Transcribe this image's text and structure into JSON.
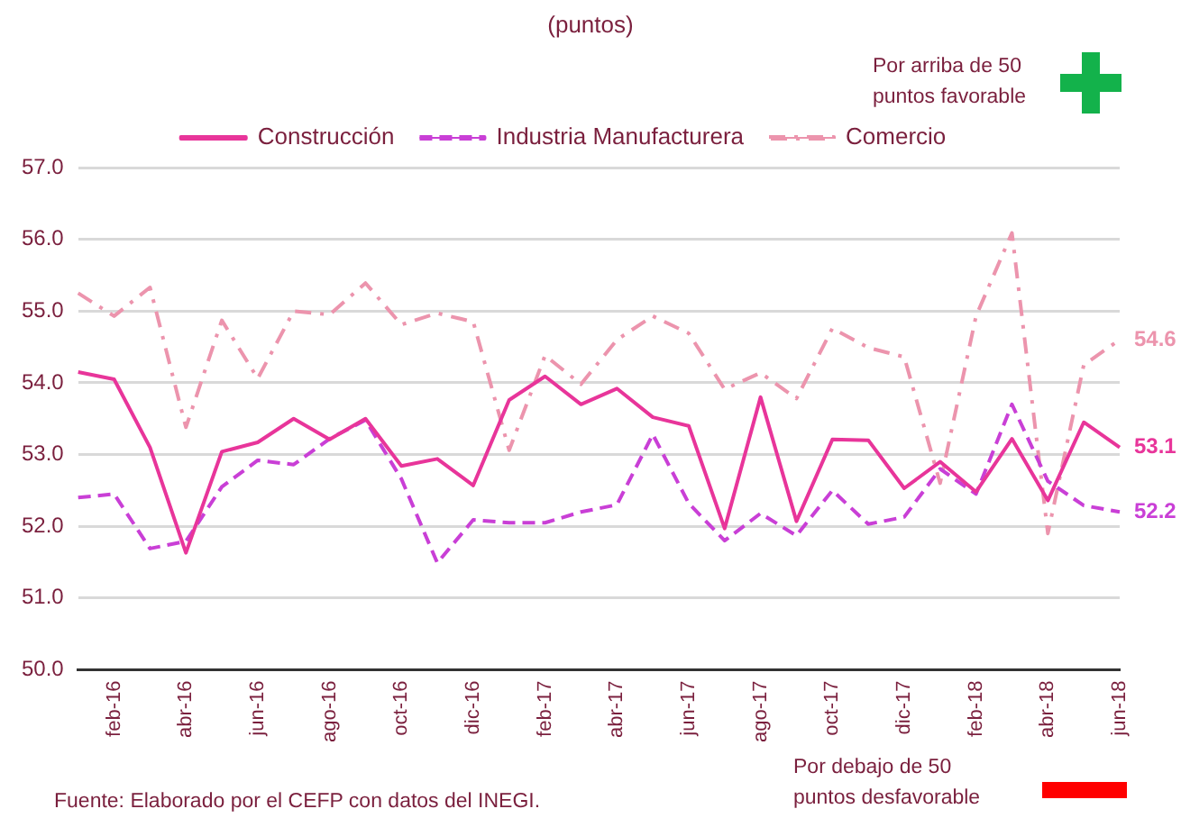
{
  "chart_data": {
    "type": "line",
    "title": "(puntos)",
    "categories": [
      null,
      "feb-16",
      null,
      "abr-16",
      null,
      "jun-16",
      null,
      "ago-16",
      null,
      "oct-16",
      null,
      "dic-16",
      null,
      "feb-17",
      null,
      "abr-17",
      null,
      "jun-17",
      null,
      "ago-17",
      null,
      "oct-17",
      null,
      "dic-17",
      null,
      "feb-18",
      null,
      "abr-18",
      null,
      "jun-18"
    ],
    "series": [
      {
        "name": "Construcción",
        "color": "#e8359a",
        "line_style": "solid",
        "values": [
          54.15,
          54.05,
          53.1,
          51.63,
          53.04,
          53.17,
          53.5,
          53.21,
          53.5,
          52.84,
          52.94,
          52.57,
          53.76,
          54.09,
          53.7,
          53.92,
          53.52,
          53.4,
          51.97,
          53.8,
          52.07,
          53.21,
          53.2,
          52.53,
          52.9,
          52.48,
          53.22,
          52.36,
          53.45,
          53.1
        ],
        "value_labels": [
          null,
          null,
          null,
          null,
          null,
          null,
          null,
          null,
          null,
          null,
          null,
          null,
          null,
          null,
          null,
          null,
          null,
          null,
          null,
          null,
          null,
          null,
          null,
          null,
          null,
          null,
          null,
          null,
          null,
          "53.1"
        ]
      },
      {
        "name": "Industria Manufacturera",
        "color": "#c93fd6",
        "line_style": "dashed",
        "values": [
          52.4,
          52.45,
          51.69,
          51.79,
          52.55,
          52.92,
          52.86,
          53.22,
          53.48,
          52.66,
          51.49,
          52.09,
          52.05,
          52.05,
          52.2,
          52.3,
          53.28,
          52.32,
          51.8,
          52.18,
          51.87,
          52.5,
          52.03,
          52.13,
          52.8,
          52.45,
          53.7,
          52.63,
          52.29,
          52.2
        ],
        "value_labels": [
          null,
          null,
          null,
          null,
          null,
          null,
          null,
          null,
          null,
          null,
          null,
          null,
          null,
          null,
          null,
          null,
          null,
          null,
          null,
          null,
          null,
          null,
          null,
          null,
          null,
          null,
          null,
          null,
          null,
          "52.2"
        ]
      },
      {
        "name": "Comercio",
        "color": "#ec94ad",
        "line_style": "dashdot",
        "values": [
          55.25,
          54.93,
          55.33,
          53.38,
          54.87,
          54.06,
          55.0,
          54.95,
          55.39,
          54.81,
          54.97,
          54.85,
          53.06,
          54.38,
          53.98,
          54.6,
          54.93,
          54.69,
          53.91,
          54.14,
          53.78,
          54.76,
          54.49,
          54.36,
          52.6,
          54.93,
          56.09,
          51.9,
          54.25,
          54.6
        ],
        "value_labels": [
          null,
          null,
          null,
          null,
          null,
          null,
          null,
          null,
          null,
          null,
          null,
          null,
          null,
          null,
          null,
          null,
          null,
          null,
          null,
          null,
          null,
          null,
          null,
          null,
          null,
          null,
          null,
          null,
          null,
          "54.6"
        ]
      }
    ],
    "ylim": [
      50,
      57
    ],
    "yticks": [
      {
        "value": 50,
        "label": "50.0"
      },
      {
        "value": 51,
        "label": "51.0"
      },
      {
        "value": 52,
        "label": "52.0"
      },
      {
        "value": 53,
        "label": "53.0"
      },
      {
        "value": 54,
        "label": "54.0"
      },
      {
        "value": 55,
        "label": "55.0"
      },
      {
        "value": 56,
        "label": "56.0"
      },
      {
        "value": 57,
        "label": "57.0"
      }
    ],
    "grid": "y",
    "legend": "top",
    "marker": "none",
    "annotations": [
      "Por arriba de 50 puntos favorable",
      "Por debajo de 50 puntos desfavorable",
      "Fuente: Elaborado  por el CEFP con datos del INEGI."
    ]
  }
}
